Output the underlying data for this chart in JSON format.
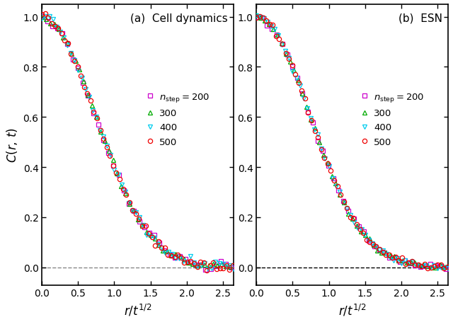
{
  "title_a": "(a)  Cell dynamics",
  "title_b": "(b)  ESN",
  "xlabel": "$r/t^{1/2}$",
  "ylabel": "$C(r,\\, t)$",
  "xlim": [
    0,
    2.65
  ],
  "ylim": [
    -0.07,
    1.05
  ],
  "xticks": [
    0,
    0.5,
    1.0,
    1.5,
    2.0,
    2.5
  ],
  "yticks": [
    0.0,
    0.2,
    0.4,
    0.6,
    0.8,
    1.0
  ],
  "legend_labels": [
    "$n_{\\rm step} = 200$",
    "300",
    "400",
    "500"
  ],
  "colors": [
    "#cc00cc",
    "#00aa00",
    "#00ccee",
    "#ee0000"
  ],
  "markers": [
    "s",
    "^",
    "v",
    "o"
  ],
  "markersize": 4.5,
  "n_steps": [
    200,
    300,
    400,
    500
  ],
  "figsize": [
    6.4,
    4.56
  ],
  "dpi": 100,
  "decay_a": 0.92,
  "decay_b": 2.0,
  "noise_scale_cell": 0.008,
  "noise_scale_esn": 0.006
}
